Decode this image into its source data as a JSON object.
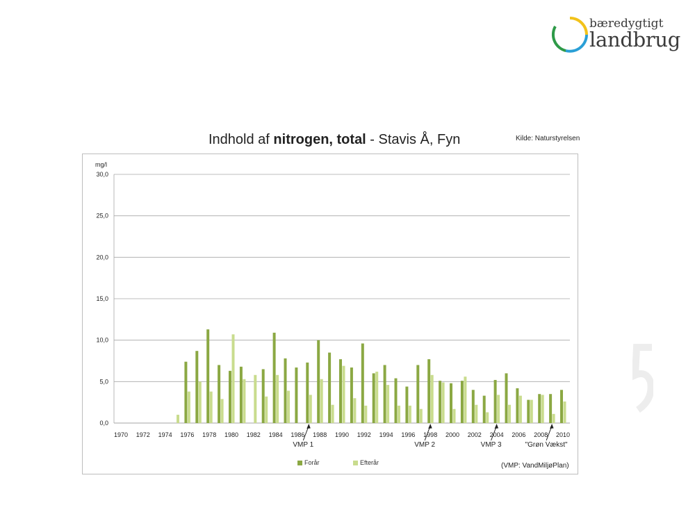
{
  "logo": {
    "line1": "bæredygtigt",
    "line2": "landbrug"
  },
  "title": {
    "prefix": "Indhold af ",
    "bold": "nitrogen, total",
    "suffix": " - Stavis Å, Fyn"
  },
  "source_note": "Kilde: Naturstyrelsen",
  "footnote": "(VMP: VandMiljøPlan)",
  "colors": {
    "forar": "#8ba843",
    "efterar": "#c9dc8e",
    "grid": "#a6a6a6",
    "arrow": "#222222"
  },
  "legend": [
    {
      "label": "Forår",
      "color": "#8ba843"
    },
    {
      "label": "Efterår",
      "color": "#c9dc8e"
    }
  ],
  "chart_data": {
    "type": "bar",
    "title": "Indhold af nitrogen, total - Stavis Å, Fyn",
    "ylabel": "mg/l",
    "ylim": [
      0,
      30
    ],
    "yticks": [
      "0,0",
      "5,0",
      "10,0",
      "15,0",
      "20,0",
      "25,0",
      "30,0"
    ],
    "ytick_values": [
      0,
      5,
      10,
      15,
      20,
      25,
      30
    ],
    "xtick_labels": [
      "1970",
      "1972",
      "1974",
      "1976",
      "1978",
      "1980",
      "1982",
      "1984",
      "1986",
      "1988",
      "1990",
      "1992",
      "1994",
      "1996",
      "1998",
      "2000",
      "2002",
      "2004",
      "2006",
      "2008",
      "2010"
    ],
    "x": [
      1970,
      1971,
      1972,
      1973,
      1974,
      1975,
      1976,
      1977,
      1978,
      1979,
      1980,
      1981,
      1982,
      1983,
      1984,
      1985,
      1986,
      1987,
      1988,
      1989,
      1990,
      1991,
      1992,
      1993,
      1994,
      1995,
      1996,
      1997,
      1998,
      1999,
      2000,
      2001,
      2002,
      2003,
      2004,
      2005,
      2006,
      2007,
      2008,
      2009,
      2010
    ],
    "series": [
      {
        "name": "Forår",
        "values": [
          null,
          null,
          null,
          null,
          null,
          null,
          7.4,
          8.7,
          11.3,
          7.0,
          6.3,
          6.8,
          null,
          6.5,
          10.9,
          7.8,
          6.7,
          7.3,
          10.0,
          8.5,
          7.7,
          6.7,
          9.6,
          6.0,
          7.0,
          5.4,
          4.4,
          7.0,
          7.7,
          5.1,
          4.8,
          5.1,
          4.0,
          3.3,
          5.2,
          6.0,
          4.2,
          2.8,
          3.5,
          3.5,
          4.0
        ]
      },
      {
        "name": "Efterår",
        "values": [
          null,
          null,
          null,
          null,
          null,
          1.0,
          3.8,
          5.0,
          3.8,
          2.9,
          10.7,
          5.3,
          5.8,
          3.2,
          5.8,
          3.9,
          null,
          3.4,
          5.3,
          2.2,
          6.9,
          3.0,
          2.1,
          6.2,
          4.6,
          2.1,
          2.1,
          1.7,
          5.8,
          4.9,
          1.7,
          5.6,
          2.2,
          1.3,
          3.4,
          2.2,
          3.3,
          2.8,
          3.4,
          1.1,
          2.6
        ]
      }
    ],
    "annotations": [
      {
        "label": "VMP 1",
        "year": 1987
      },
      {
        "label": "VMP 2",
        "year": 1998
      },
      {
        "label": "VMP 3",
        "year": 2004
      },
      {
        "label": "\"Grøn Vækst\"",
        "year": 2009
      }
    ],
    "legend_position": "bottom"
  }
}
